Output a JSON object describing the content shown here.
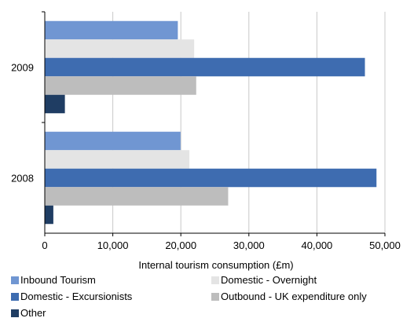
{
  "chart_data": {
    "type": "bar",
    "orientation": "horizontal",
    "categories": [
      "2009",
      "2008"
    ],
    "series": [
      {
        "name": "Inbound Tourism",
        "color": "#7096d2",
        "values": [
          19500,
          19900
        ]
      },
      {
        "name": "Domestic - Overnight",
        "color": "#e4e4e4",
        "values": [
          21900,
          21200
        ]
      },
      {
        "name": "Domestic - Excursionists",
        "color": "#3e6cb0",
        "values": [
          47000,
          48700
        ]
      },
      {
        "name": "Outbound - UK expenditure only",
        "color": "#bdbdbd",
        "values": [
          22200,
          26900
        ]
      },
      {
        "name": "Other",
        "color": "#1f3d63",
        "values": [
          2900,
          1200
        ]
      }
    ],
    "xlim": [
      0,
      50000
    ],
    "xticks": [
      "0",
      "10,000",
      "20,000",
      "30,000",
      "40,000",
      "50,000"
    ],
    "xtick_values": [
      0,
      10000,
      20000,
      30000,
      40000,
      50000
    ],
    "xlabel": "Internal tourism consumption (£m)",
    "ylabel": "",
    "title": "",
    "grid": "vertical",
    "legend_position": "bottom"
  }
}
